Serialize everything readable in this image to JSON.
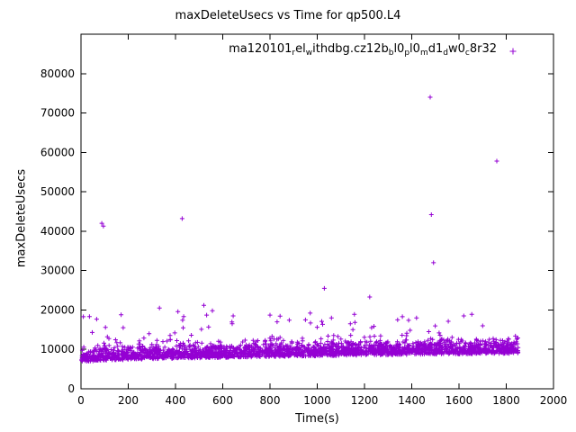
{
  "chart_data": {
    "type": "scatter",
    "title": "maxDeleteUsecs vs Time for qp500.L4",
    "xlabel": "Time(s)",
    "ylabel": "maxDeleteUsecs",
    "xlim": [
      0,
      2000
    ],
    "ylim": [
      0,
      90000
    ],
    "xticks": [
      0,
      200,
      400,
      600,
      800,
      1000,
      1200,
      1400,
      1600,
      1800,
      2000
    ],
    "yticks": [
      0,
      10000,
      20000,
      30000,
      40000,
      50000,
      60000,
      70000,
      80000
    ],
    "grid": false,
    "legend": {
      "raw_label": "ma120101_rel_withdbg.cz12b_bl0_pl0_md1_dw0_c8r32",
      "segments": [
        {
          "t": "ma120101",
          "sub": false
        },
        {
          "t": "r",
          "sub": true
        },
        {
          "t": "el",
          "sub": false
        },
        {
          "t": "w",
          "sub": true
        },
        {
          "t": "ithdbg.cz12b",
          "sub": false
        },
        {
          "t": "b",
          "sub": true
        },
        {
          "t": "l0",
          "sub": false
        },
        {
          "t": "p",
          "sub": true
        },
        {
          "t": "l0",
          "sub": false
        },
        {
          "t": "m",
          "sub": true
        },
        {
          "t": "d1",
          "sub": false
        },
        {
          "t": "d",
          "sub": true
        },
        {
          "t": "w0",
          "sub": false
        },
        {
          "t": "c",
          "sub": true
        },
        {
          "t": "8r32",
          "sub": false
        }
      ],
      "position": "top-right-inside",
      "marker": "plus"
    },
    "series": [
      {
        "name": "ma120101_rel_withdbg.cz12b_bl0_pl0_md1_dw0_c8r32",
        "color": "#9400d3",
        "marker": "plus",
        "outliers": [
          [
            10,
            18300
          ],
          [
            88,
            42000
          ],
          [
            95,
            41300
          ],
          [
            170,
            18800
          ],
          [
            332,
            20500
          ],
          [
            428,
            43200
          ],
          [
            430,
            17400
          ],
          [
            520,
            21200
          ],
          [
            640,
            16500
          ],
          [
            800,
            18700
          ],
          [
            830,
            17000
          ],
          [
            950,
            17500
          ],
          [
            1030,
            25500
          ],
          [
            1060,
            18000
          ],
          [
            1140,
            16500
          ],
          [
            1222,
            23300
          ],
          [
            1230,
            15500
          ],
          [
            1340,
            17500
          ],
          [
            1420,
            18000
          ],
          [
            1478,
            74000
          ],
          [
            1483,
            44200
          ],
          [
            1492,
            32000
          ],
          [
            1620,
            18500
          ],
          [
            1700,
            16000
          ],
          [
            1760,
            57800
          ]
        ],
        "band": {
          "points": 2400,
          "x_min": 2,
          "x_max": 1852,
          "base_start": 6800,
          "base_end": 9000,
          "noise_sigma": 1700,
          "spike_prob": 0.025,
          "spike_min": 2000,
          "spike_max": 9500,
          "seed": 42
        }
      }
    ]
  },
  "layout": {
    "marker_half_size": 2.5,
    "legend_marker_half_size": 3.5,
    "tick_len": 6
  }
}
